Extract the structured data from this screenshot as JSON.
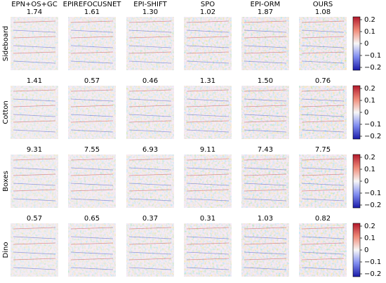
{
  "columns": [
    "EPN+OS+GC",
    "EPIREFOCUSNET",
    "EPI-SHIFT",
    "SPO",
    "EPI-ORM",
    "OURS"
  ],
  "rows": [
    {
      "label": "Sideboard",
      "values": [
        "1.74",
        "1.61",
        "1.30",
        "1.02",
        "1.87",
        "1.08"
      ]
    },
    {
      "label": "Cotton",
      "values": [
        "1.41",
        "0.57",
        "0.46",
        "1.31",
        "1.50",
        "0.76"
      ]
    },
    {
      "label": "Boxes",
      "values": [
        "9.31",
        "7.55",
        "6.93",
        "9.11",
        "7.43",
        "7.75"
      ]
    },
    {
      "label": "Dino",
      "values": [
        "0.57",
        "0.65",
        "0.37",
        "0.31",
        "1.03",
        "0.82"
      ]
    }
  ],
  "colorbar_ticks": [
    "0.2",
    "0.1",
    "0",
    "−0.1",
    "−0.2"
  ]
}
